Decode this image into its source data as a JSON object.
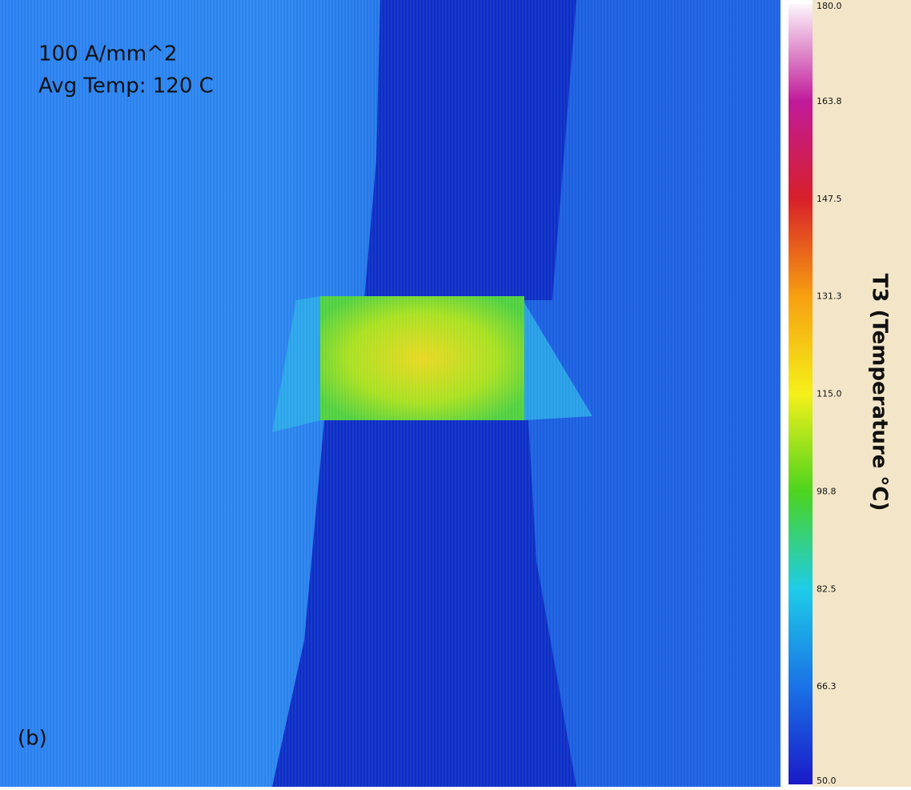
{
  "image": {
    "annotation_lines": [
      "100 A/mm^2",
      "Avg Temp: 120 C"
    ],
    "panel_label": "(b)"
  },
  "colorbar": {
    "label": "T3 (Temperature °C)",
    "ticks": [
      "180.0",
      "163.8",
      "147.5",
      "131.3",
      "115.0",
      "98.8",
      "82.5",
      "66.3",
      "50.0"
    ]
  }
}
